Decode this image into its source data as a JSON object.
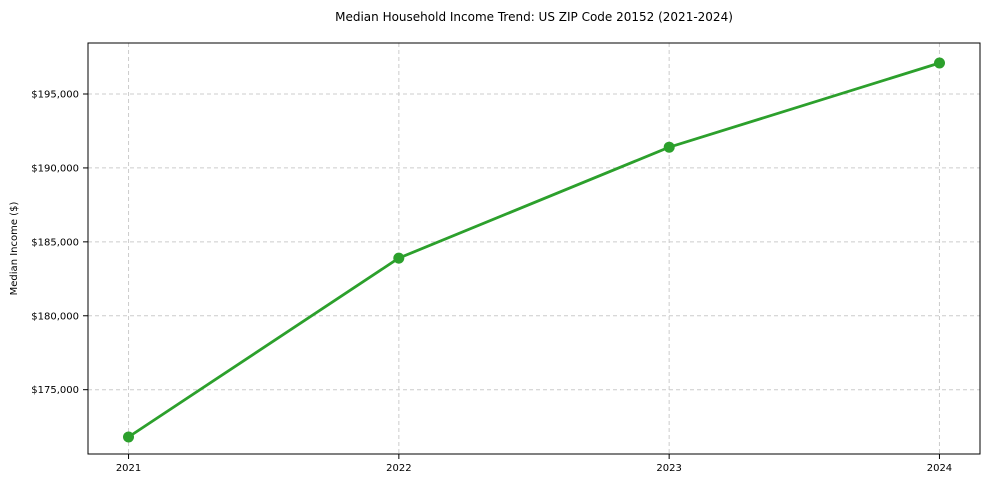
{
  "chart_data": {
    "type": "line",
    "title": "Median Household Income Trend: US ZIP Code 20152 (2021-2024)",
    "xlabel": "",
    "ylabel": "Median Income ($)",
    "x": [
      2021,
      2022,
      2023,
      2024
    ],
    "xtick_labels": [
      "2021",
      "2022",
      "2023",
      "2024"
    ],
    "values": [
      171800,
      183900,
      191400,
      197100
    ],
    "yticks": [
      175000,
      180000,
      185000,
      190000,
      195000
    ],
    "ytick_labels": [
      "$175,000",
      "$180,000",
      "$185,000",
      "$190,000",
      "$195,000"
    ],
    "xlim": [
      2020.85,
      2024.15
    ],
    "ylim": [
      170650,
      198450
    ],
    "grid": true,
    "grid_color": "#cccccc",
    "legend": false,
    "line_color": "#2ca02c",
    "marker": "circle",
    "background": "#ffffff",
    "spine_color": "#000000"
  }
}
